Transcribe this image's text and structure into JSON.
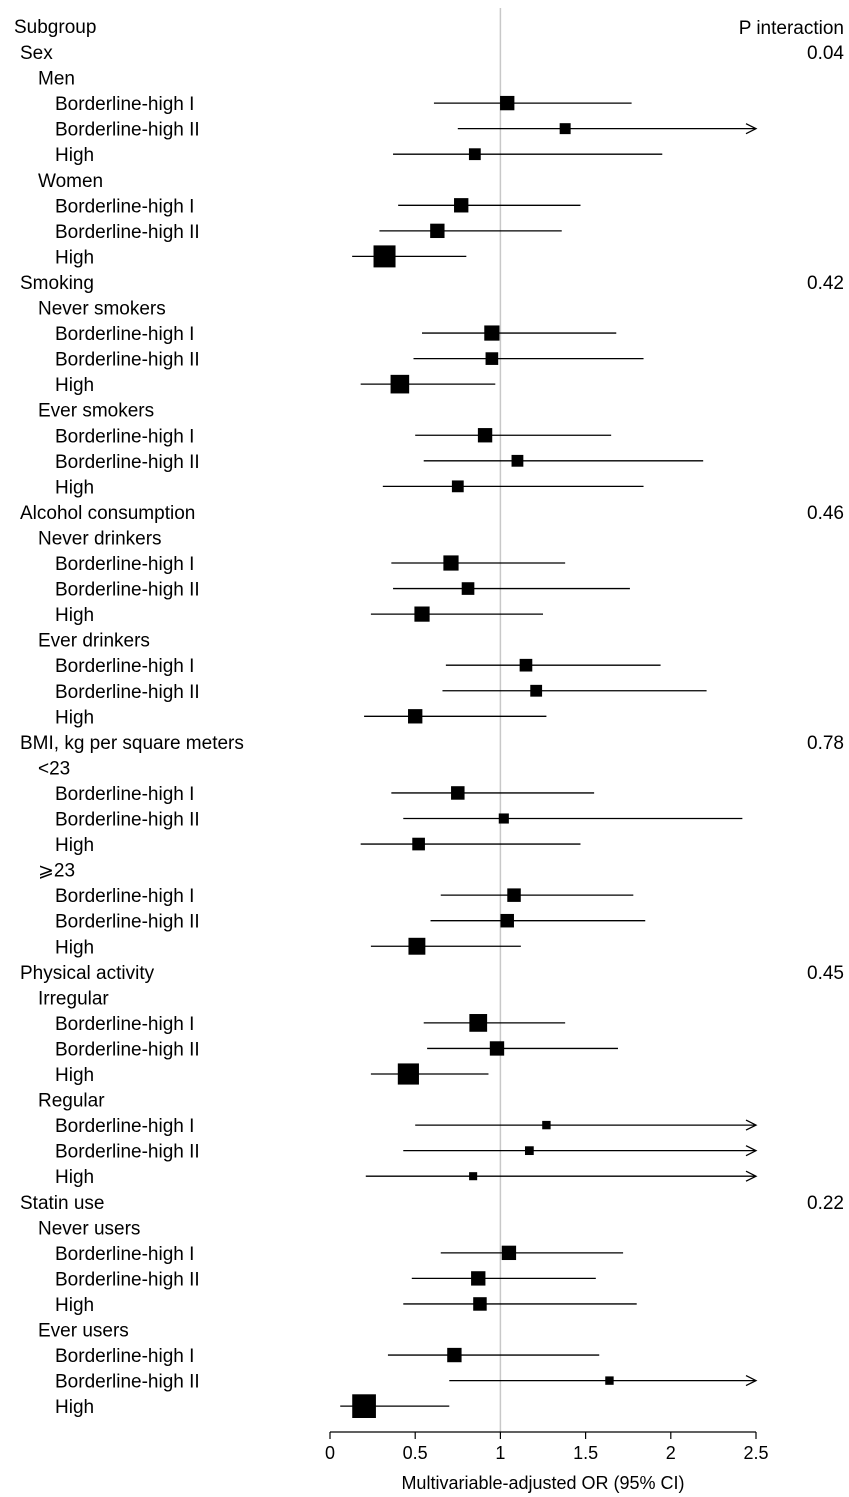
{
  "chart_data": {
    "type": "forest",
    "header_left": "Subgroup",
    "header_right": "P interaction",
    "xlabel": "Multivariable-adjusted OR (95% CI)",
    "xlim": [
      0,
      2.5
    ],
    "xticks": [
      "0",
      "0.5",
      "1",
      "1.5",
      "2",
      "2.5"
    ],
    "reference_line": 1,
    "rows": [
      {
        "label": "Sex",
        "level": 0,
        "p": "0.04"
      },
      {
        "label": "Men",
        "level": 1
      },
      {
        "label": "Borderline-high I",
        "level": 2,
        "or": 1.04,
        "lo": 0.61,
        "hi": 1.77,
        "weight": 0.55
      },
      {
        "label": "Borderline-high II",
        "level": 2,
        "or": 1.38,
        "lo": 0.75,
        "hi": 2.5,
        "arrow": true,
        "weight": 0.35
      },
      {
        "label": "High",
        "level": 2,
        "or": 0.85,
        "lo": 0.37,
        "hi": 1.95,
        "weight": 0.4
      },
      {
        "label": "Women",
        "level": 1
      },
      {
        "label": "Borderline-high I",
        "level": 2,
        "or": 0.77,
        "lo": 0.4,
        "hi": 1.47,
        "weight": 0.55
      },
      {
        "label": "Borderline-high II",
        "level": 2,
        "or": 0.63,
        "lo": 0.29,
        "hi": 1.36,
        "weight": 0.55
      },
      {
        "label": "High",
        "level": 2,
        "or": 0.32,
        "lo": 0.13,
        "hi": 0.8,
        "weight": 1.0
      },
      {
        "label": "Smoking",
        "level": 0,
        "p": "0.42"
      },
      {
        "label": "Never smokers",
        "level": 1
      },
      {
        "label": "Borderline-high I",
        "level": 2,
        "or": 0.95,
        "lo": 0.54,
        "hi": 1.68,
        "weight": 0.6
      },
      {
        "label": "Borderline-high II",
        "level": 2,
        "or": 0.95,
        "lo": 0.49,
        "hi": 1.84,
        "weight": 0.45
      },
      {
        "label": "High",
        "level": 2,
        "or": 0.41,
        "lo": 0.18,
        "hi": 0.97,
        "weight": 0.8
      },
      {
        "label": "Ever smokers",
        "level": 1
      },
      {
        "label": "Borderline-high I",
        "level": 2,
        "or": 0.91,
        "lo": 0.5,
        "hi": 1.65,
        "weight": 0.55
      },
      {
        "label": "Borderline-high II",
        "level": 2,
        "or": 1.1,
        "lo": 0.55,
        "hi": 2.19,
        "weight": 0.4
      },
      {
        "label": "High",
        "level": 2,
        "or": 0.75,
        "lo": 0.31,
        "hi": 1.84,
        "weight": 0.4
      },
      {
        "label": "Alcohol consumption",
        "level": 0,
        "p": "0.46"
      },
      {
        "label": "Never drinkers",
        "level": 1
      },
      {
        "label": "Borderline-high I",
        "level": 2,
        "or": 0.71,
        "lo": 0.36,
        "hi": 1.38,
        "weight": 0.6
      },
      {
        "label": "Borderline-high II",
        "level": 2,
        "or": 0.81,
        "lo": 0.37,
        "hi": 1.76,
        "weight": 0.45
      },
      {
        "label": "High",
        "level": 2,
        "or": 0.54,
        "lo": 0.24,
        "hi": 1.25,
        "weight": 0.6
      },
      {
        "label": "Ever drinkers",
        "level": 1
      },
      {
        "label": "Borderline-high I",
        "level": 2,
        "or": 1.15,
        "lo": 0.68,
        "hi": 1.94,
        "weight": 0.45
      },
      {
        "label": "Borderline-high II",
        "level": 2,
        "or": 1.21,
        "lo": 0.66,
        "hi": 2.21,
        "weight": 0.4
      },
      {
        "label": "High",
        "level": 2,
        "or": 0.5,
        "lo": 0.2,
        "hi": 1.27,
        "weight": 0.55
      },
      {
        "label": "BMI, kg per square meters",
        "level": 0,
        "p": "0.78"
      },
      {
        "label": "<23",
        "level": 1
      },
      {
        "label": "Borderline-high I",
        "level": 2,
        "or": 0.75,
        "lo": 0.36,
        "hi": 1.55,
        "weight": 0.5
      },
      {
        "label": "Borderline-high II",
        "level": 2,
        "or": 1.02,
        "lo": 0.43,
        "hi": 2.42,
        "weight": 0.3
      },
      {
        "label": "High",
        "level": 2,
        "or": 0.52,
        "lo": 0.18,
        "hi": 1.47,
        "weight": 0.45
      },
      {
        "label": "⩾23",
        "level": 1
      },
      {
        "label": "Borderline-high I",
        "level": 2,
        "or": 1.08,
        "lo": 0.65,
        "hi": 1.78,
        "weight": 0.5
      },
      {
        "label": "Borderline-high II",
        "level": 2,
        "or": 1.04,
        "lo": 0.59,
        "hi": 1.85,
        "weight": 0.5
      },
      {
        "label": "High",
        "level": 2,
        "or": 0.51,
        "lo": 0.24,
        "hi": 1.12,
        "weight": 0.7
      },
      {
        "label": "Physical activity",
        "level": 0,
        "p": "0.45"
      },
      {
        "label": "Irregular",
        "level": 1
      },
      {
        "label": "Borderline-high I",
        "level": 2,
        "or": 0.87,
        "lo": 0.55,
        "hi": 1.38,
        "weight": 0.75
      },
      {
        "label": "Borderline-high II",
        "level": 2,
        "or": 0.98,
        "lo": 0.57,
        "hi": 1.69,
        "weight": 0.55
      },
      {
        "label": "High",
        "level": 2,
        "or": 0.46,
        "lo": 0.24,
        "hi": 0.93,
        "weight": 0.95
      },
      {
        "label": "Regular",
        "level": 1
      },
      {
        "label": "Borderline-high I",
        "level": 2,
        "or": 1.27,
        "lo": 0.5,
        "hi": 2.5,
        "arrow": true,
        "weight": 0.2
      },
      {
        "label": "Borderline-high II",
        "level": 2,
        "or": 1.17,
        "lo": 0.43,
        "hi": 2.5,
        "arrow": true,
        "weight": 0.22
      },
      {
        "label": "High",
        "level": 2,
        "or": 0.84,
        "lo": 0.21,
        "hi": 2.5,
        "arrow": true,
        "weight": 0.18
      },
      {
        "label": "Statin use",
        "level": 0,
        "p": "0.22"
      },
      {
        "label": "Never users",
        "level": 1
      },
      {
        "label": "Borderline-high I",
        "level": 2,
        "or": 1.05,
        "lo": 0.65,
        "hi": 1.72,
        "weight": 0.55
      },
      {
        "label": "Borderline-high II",
        "level": 2,
        "or": 0.87,
        "lo": 0.48,
        "hi": 1.56,
        "weight": 0.55
      },
      {
        "label": "High",
        "level": 2,
        "or": 0.88,
        "lo": 0.43,
        "hi": 1.8,
        "weight": 0.5
      },
      {
        "label": "Ever users",
        "level": 1
      },
      {
        "label": "Borderline-high I",
        "level": 2,
        "or": 0.73,
        "lo": 0.34,
        "hi": 1.58,
        "weight": 0.55
      },
      {
        "label": "Borderline-high II",
        "level": 2,
        "or": 1.64,
        "lo": 0.7,
        "hi": 2.5,
        "arrow": true,
        "weight": 0.2
      },
      {
        "label": "High",
        "level": 2,
        "or": 0.2,
        "lo": 0.06,
        "hi": 0.7,
        "weight": 1.1
      }
    ]
  }
}
